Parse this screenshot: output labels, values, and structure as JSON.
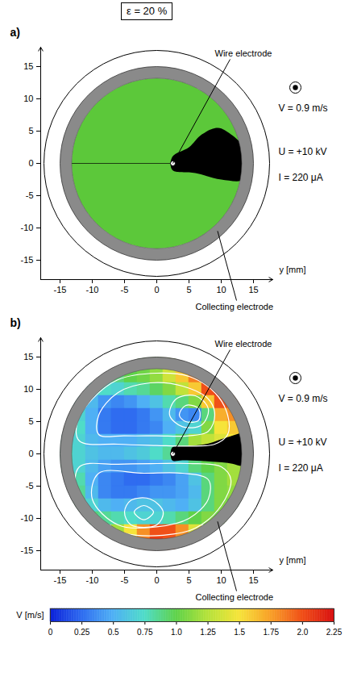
{
  "title": "ε = 20 %",
  "chart_data": [
    {
      "type": "field",
      "panel": "a)",
      "xlabel": "y [mm]",
      "xlim": [
        -18,
        18
      ],
      "ylim": [
        -18,
        18
      ],
      "xticks": [
        -15,
        -10,
        -5,
        0,
        5,
        10,
        15
      ],
      "yticks": [
        -15,
        -10,
        -5,
        0,
        5,
        10,
        15
      ],
      "color": "#5cc83a",
      "wire_electrode": {
        "label": "Wire electrode",
        "y": 2.5,
        "z": 0
      },
      "collecting_electrode": {
        "label": "Collecting electrode",
        "center": [
          0,
          0
        ],
        "inner_radius": 13.2,
        "outer_radius": 15,
        "casing_radius": 17.5
      },
      "shadow": [
        [
          2.4,
          1
        ],
        [
          5,
          2.5
        ],
        [
          7,
          4.5
        ],
        [
          9.5,
          5.5
        ],
        [
          11.5,
          4.5
        ],
        [
          13.5,
          2.5
        ],
        [
          14,
          0
        ],
        [
          13.5,
          -2.5
        ],
        [
          10,
          -2.5
        ],
        [
          6,
          -1.5
        ],
        [
          2.4,
          -1
        ]
      ],
      "annotations": [
        "V = 0.9 m/s",
        "U = +10 kV",
        "I = 220 μA"
      ]
    },
    {
      "type": "field",
      "panel": "b)",
      "xlabel": "y [mm]",
      "xlim": [
        -18,
        18
      ],
      "ylim": [
        -18,
        18
      ],
      "xticks": [
        -15,
        -10,
        -5,
        0,
        5,
        10,
        15
      ],
      "yticks": [
        -15,
        -10,
        -5,
        0,
        5,
        10,
        15
      ],
      "wire_electrode": {
        "label": "Wire electrode",
        "y": 2.5,
        "z": 0
      },
      "collecting_electrode": {
        "label": "Collecting electrode",
        "center": [
          0,
          0
        ],
        "inner_radius": 13.2,
        "outer_radius": 15,
        "casing_radius": 17.5
      },
      "shadow": [
        [
          2.4,
          1
        ],
        [
          5,
          1.2
        ],
        [
          8,
          1.6
        ],
        [
          11,
          2.6
        ],
        [
          14.5,
          3.2
        ],
        [
          14.5,
          -1.8
        ],
        [
          11,
          -1.4
        ],
        [
          7,
          -1.1
        ],
        [
          4,
          -1
        ],
        [
          2.4,
          -1
        ]
      ],
      "annotations": [
        "V = 0.9 m/s",
        "U = +10 kV",
        "I = 220 μA"
      ],
      "cells": {
        "y": [
          -14,
          -12,
          -10,
          -8,
          -6,
          -4,
          -2,
          0,
          2,
          4,
          6,
          8,
          10,
          12,
          14
        ],
        "z": [
          14,
          12,
          10,
          8,
          6,
          4,
          2,
          0,
          -2,
          -4,
          -6,
          -8,
          -10,
          -12,
          -14
        ],
        "values": [
          [
            null,
            null,
            null,
            null,
            null,
            null,
            1.0,
            1.1,
            1.3,
            null,
            null,
            null,
            null,
            null,
            null
          ],
          [
            null,
            null,
            null,
            null,
            0.9,
            1.0,
            1.05,
            1.15,
            1.35,
            1.6,
            1.85,
            null,
            null,
            null,
            null
          ],
          [
            null,
            null,
            0.7,
            0.75,
            0.7,
            0.8,
            0.85,
            0.95,
            1.1,
            1.3,
            1.6,
            2.0,
            2.1,
            null,
            null
          ],
          [
            null,
            0.7,
            0.55,
            0.4,
            0.35,
            0.4,
            0.5,
            0.6,
            0.8,
            0.9,
            1.1,
            1.6,
            2.0,
            1.9,
            null
          ],
          [
            null,
            0.7,
            0.5,
            0.3,
            0.25,
            0.25,
            0.3,
            0.4,
            0.55,
            0.4,
            0.35,
            0.9,
            1.7,
            1.8,
            null
          ],
          [
            null,
            0.75,
            0.5,
            0.3,
            0.25,
            0.25,
            0.3,
            0.35,
            0.5,
            0.6,
            0.7,
            1.1,
            1.5,
            1.6,
            null
          ],
          [
            0.8,
            0.7,
            0.55,
            0.5,
            0.5,
            0.5,
            0.55,
            0.6,
            0.75,
            0.9,
            1.2,
            1.3,
            1.4,
            1.5,
            1.4
          ],
          [
            0.8,
            0.7,
            0.6,
            0.55,
            0.55,
            0.6,
            0.65,
            0.75,
            0.85,
            null,
            null,
            null,
            null,
            null,
            null
          ],
          [
            0.85,
            0.7,
            0.55,
            0.45,
            0.4,
            0.4,
            0.45,
            0.5,
            0.6,
            0.7,
            0.9,
            1.0,
            1.1,
            1.2,
            1.2
          ],
          [
            null,
            0.8,
            0.5,
            0.35,
            0.3,
            0.25,
            0.25,
            0.3,
            0.35,
            0.45,
            0.6,
            0.9,
            1.1,
            1.2,
            null
          ],
          [
            null,
            0.85,
            0.55,
            0.35,
            0.3,
            0.3,
            0.35,
            0.4,
            0.4,
            0.45,
            0.55,
            0.9,
            1.1,
            1.15,
            null
          ],
          [
            null,
            0.9,
            0.7,
            0.55,
            0.5,
            0.55,
            0.6,
            0.6,
            0.55,
            0.5,
            0.6,
            0.9,
            1.1,
            1.0,
            null
          ],
          [
            null,
            null,
            0.9,
            0.85,
            0.8,
            0.75,
            0.7,
            0.7,
            0.8,
            0.9,
            1.0,
            1.1,
            1.05,
            null,
            null
          ],
          [
            null,
            null,
            null,
            null,
            1.2,
            1.5,
            1.8,
            2.0,
            2.0,
            1.8,
            1.4,
            null,
            null,
            null,
            null
          ],
          [
            null,
            null,
            null,
            null,
            null,
            null,
            1.9,
            2.1,
            2.0,
            null,
            null,
            null,
            null,
            null,
            null
          ]
        ]
      },
      "streamlines": [
        [
          [
            -12,
            2
          ],
          [
            -12.3,
            5
          ],
          [
            -10,
            8.5
          ],
          [
            -6,
            11.5
          ],
          [
            0,
            12.5
          ],
          [
            5,
            12
          ],
          [
            9,
            9.5
          ],
          [
            11,
            6
          ],
          [
            11,
            3
          ],
          [
            9,
            1.5
          ],
          [
            5,
            1.2
          ],
          [
            0,
            1.3
          ],
          [
            -6,
            1.5
          ]
        ],
        [
          [
            -9,
            3
          ],
          [
            -9,
            6
          ],
          [
            -6,
            9.5
          ],
          [
            -1,
            11
          ],
          [
            4,
            10.5
          ],
          [
            8,
            8.5
          ],
          [
            9,
            6
          ],
          [
            8,
            3.5
          ],
          [
            5,
            2.8
          ],
          [
            0,
            2.8
          ],
          [
            -5,
            2.8
          ]
        ],
        [
          [
            2,
            6
          ],
          [
            3,
            8.5
          ],
          [
            6,
            9
          ],
          [
            8,
            7
          ],
          [
            7,
            4.5
          ],
          [
            4,
            4.2
          ]
        ],
        [
          [
            3.5,
            6
          ],
          [
            4.5,
            7.5
          ],
          [
            6.5,
            7
          ],
          [
            6.5,
            5.2
          ],
          [
            4.5,
            5
          ]
        ],
        [
          [
            -12,
            -2
          ],
          [
            -12.5,
            -6
          ],
          [
            -10,
            -10
          ],
          [
            -5,
            -12.3
          ],
          [
            1,
            -12.6
          ],
          [
            6,
            -11.5
          ],
          [
            10,
            -8
          ],
          [
            11.5,
            -4
          ],
          [
            10,
            -2
          ],
          [
            5,
            -1.5
          ],
          [
            0,
            -1.5
          ],
          [
            -6,
            -1.6
          ]
        ],
        [
          [
            -9,
            -3
          ],
          [
            -10,
            -7
          ],
          [
            -6,
            -11
          ],
          [
            0,
            -11.3
          ],
          [
            5,
            -10
          ],
          [
            8,
            -7
          ],
          [
            8,
            -4
          ],
          [
            4,
            -3
          ],
          [
            -2,
            -3
          ]
        ],
        [
          [
            -5,
            -9
          ],
          [
            -4,
            -11
          ],
          [
            0,
            -11
          ],
          [
            1,
            -9
          ],
          [
            -1,
            -7
          ],
          [
            -4,
            -7.2
          ]
        ],
        [
          [
            -3.5,
            -9
          ],
          [
            -2,
            -10.2
          ],
          [
            -0.5,
            -9
          ],
          [
            -2,
            -8
          ]
        ]
      ],
      "colorbar": {
        "label": "V [m/s]",
        "range": [
          0,
          2.25
        ],
        "ticks": [
          0,
          0.25,
          0.5,
          0.75,
          {
            "value": 1,
            "label": "1.0"
          },
          1.25,
          1.5,
          1.75,
          {
            "value": 2,
            "label": "2.0"
          },
          2.25
        ]
      }
    }
  ]
}
